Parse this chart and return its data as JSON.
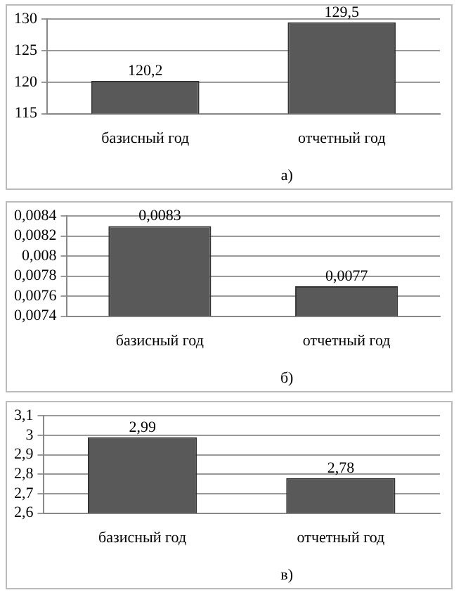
{
  "chart_data": [
    {
      "type": "bar",
      "categories": [
        "базисный год",
        "отчетный год"
      ],
      "values": [
        120.2,
        129.5
      ],
      "value_labels": [
        "120,2",
        "129,5"
      ],
      "color": "#595959",
      "ylim": [
        115,
        130
      ],
      "yticks": [
        115,
        120,
        125,
        130
      ],
      "grid": "y",
      "legend": false,
      "annotations": [
        "а)"
      ]
    },
    {
      "type": "bar",
      "categories": [
        "базисный год",
        "отчетный год"
      ],
      "values": [
        0.0083,
        0.0077
      ],
      "value_labels": [
        "0,0083",
        "0,0077"
      ],
      "color": "#595959",
      "ylim": [
        0.0074,
        0.0084
      ],
      "yticks": [
        {
          "value": 0.0074,
          "label": "0,0074"
        },
        {
          "value": 0.0076,
          "label": "0,0076"
        },
        {
          "value": 0.0078,
          "label": "0,0078"
        },
        {
          "value": 0.008,
          "label": "0,008"
        },
        {
          "value": 0.0082,
          "label": "0,0082"
        },
        {
          "value": 0.0084,
          "label": "0,0084"
        }
      ],
      "grid": "y",
      "legend": false,
      "annotations": [
        "б)"
      ]
    },
    {
      "type": "bar",
      "categories": [
        "базисный год",
        "отчетный год"
      ],
      "values": [
        2.99,
        2.78
      ],
      "value_labels": [
        "2,99",
        "2,78"
      ],
      "color": "#595959",
      "ylim": [
        2.6,
        3.1
      ],
      "yticks": [
        {
          "value": 2.6,
          "label": "2,6"
        },
        {
          "value": 2.7,
          "label": "2,7"
        },
        {
          "value": 2.8,
          "label": "2,8"
        },
        {
          "value": 2.9,
          "label": "2,9"
        },
        {
          "value": 3,
          "label": "3"
        },
        {
          "value": 3.1,
          "label": "3,1"
        }
      ],
      "grid": "y",
      "legend": false,
      "annotations": [
        "в)"
      ]
    }
  ]
}
